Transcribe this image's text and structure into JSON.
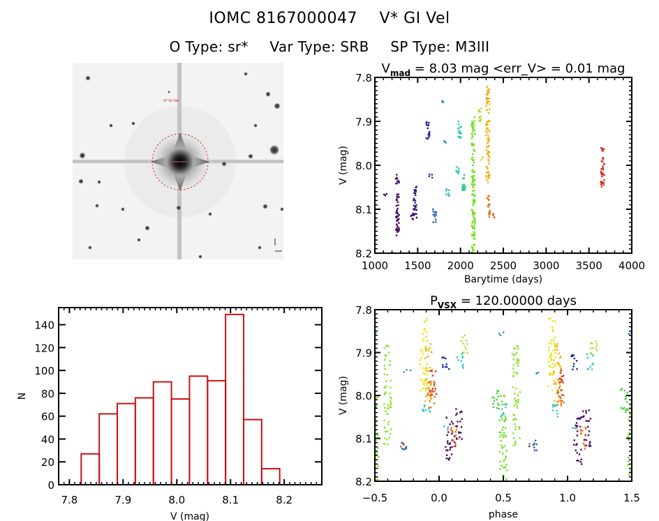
{
  "header": {
    "object_id": "IOMC 8167000047",
    "object_name": "V* GI Vel",
    "o_type": "O Type: sr*",
    "var_type": "Var Type: SRB",
    "sp_type": "SP Type: M3III"
  },
  "image_panel": {
    "description": "Sky cutout centred on target (inverted greyscale) with red dashed aperture circle",
    "aperture_color": "#d01818"
  },
  "chart_data": [
    {
      "id": "light_curve",
      "type": "scatter",
      "title_main": "V",
      "title_sub": "mad",
      "title_rest": " = 8.03 mag <err_V> = 0.01 mag",
      "xlabel": "Barytime (days)",
      "ylabel": "V (mag)",
      "xlim": [
        1000,
        4000
      ],
      "ylim": [
        8.2,
        7.8
      ],
      "y_inverted": true,
      "xticks": [
        1000,
        1500,
        2000,
        2500,
        3000,
        3500,
        4000
      ],
      "yticks": [
        7.8,
        7.9,
        8.0,
        8.1,
        8.2
      ],
      "ytick_labels": [
        "7.8",
        "7.9",
        "8.0",
        "8.1",
        "8.2"
      ],
      "clusters": [
        {
          "x": 1120,
          "ymin": 8.065,
          "ymax": 8.07,
          "color": "#3a0a50"
        },
        {
          "x": 1265,
          "ymin": 8.02,
          "ymax": 8.16,
          "color": "#4b0a62"
        },
        {
          "x": 1430,
          "ymin": 8.11,
          "ymax": 8.13,
          "color": "#4a1070"
        },
        {
          "x": 1470,
          "ymin": 8.04,
          "ymax": 8.12,
          "color": "#3b1a80"
        },
        {
          "x": 1620,
          "ymin": 7.9,
          "ymax": 7.94,
          "color": "#1c2a9a"
        },
        {
          "x": 1650,
          "ymin": 8.02,
          "ymax": 8.03,
          "color": "#2540a8"
        },
        {
          "x": 1700,
          "ymin": 8.1,
          "ymax": 8.13,
          "color": "#2860b0"
        },
        {
          "x": 1790,
          "ymin": 7.85,
          "ymax": 7.86,
          "color": "#2a88c0"
        },
        {
          "x": 1810,
          "ymin": 7.94,
          "ymax": 7.95,
          "color": "#2a9ac8"
        },
        {
          "x": 1850,
          "ymin": 8.05,
          "ymax": 8.07,
          "color": "#30b8d0"
        },
        {
          "x": 1990,
          "ymin": 7.9,
          "ymax": 7.94,
          "color": "#30c8c0"
        },
        {
          "x": 1970,
          "ymin": 8.0,
          "ymax": 8.02,
          "color": "#30c8c0"
        },
        {
          "x": 2040,
          "ymin": 8.02,
          "ymax": 8.06,
          "color": "#2cc890"
        },
        {
          "x": 2150,
          "ymin": 7.89,
          "ymax": 8.2,
          "color": "#70e020"
        },
        {
          "x": 2230,
          "ymin": 7.87,
          "ymax": 7.9,
          "color": "#b0e040"
        },
        {
          "x": 2260,
          "ymin": 7.98,
          "ymax": 7.99,
          "color": "#c8e040"
        },
        {
          "x": 2320,
          "ymin": 7.82,
          "ymax": 8.04,
          "color": "#f0b010"
        },
        {
          "x": 2330,
          "ymin": 8.07,
          "ymax": 8.12,
          "color": "#e07820"
        },
        {
          "x": 2400,
          "ymin": 8.11,
          "ymax": 8.12,
          "color": "#d06020"
        },
        {
          "x": 3660,
          "ymin": 7.96,
          "ymax": 8.05,
          "color": "#d03020"
        }
      ]
    },
    {
      "id": "histogram",
      "type": "bar",
      "xlabel": "V (mag)",
      "ylabel": "N",
      "xlim": [
        7.78,
        8.27
      ],
      "ylim": [
        0,
        155
      ],
      "xticks": [
        7.8,
        7.9,
        8.0,
        8.1,
        8.2
      ],
      "xtick_labels": [
        "7.8",
        "7.9",
        "8.0",
        "8.1",
        "8.2"
      ],
      "yticks": [
        0,
        20,
        40,
        60,
        80,
        100,
        120,
        140
      ],
      "bin_start": 7.822,
      "bin_width": 0.0336,
      "values": [
        27,
        62,
        71,
        76,
        90,
        75,
        95,
        91,
        149,
        57,
        14
      ],
      "bar_color": "#cc1010"
    },
    {
      "id": "phase_curve",
      "type": "scatter",
      "title_main": "P",
      "title_sub": "VSX",
      "title_rest": " = 120.00000 days",
      "xlabel": "phase",
      "ylabel": "V (mag)",
      "xlim": [
        -0.5,
        1.5
      ],
      "ylim": [
        8.2,
        7.8
      ],
      "y_inverted": true,
      "xticks": [
        -0.5,
        0.0,
        0.5,
        1.0,
        1.5
      ],
      "xtick_labels": [
        "−0.5",
        "0.0",
        "0.5",
        "1.0",
        "1.5"
      ],
      "yticks": [
        7.8,
        7.9,
        8.0,
        8.1,
        8.2
      ],
      "ytick_labels": [
        "7.8",
        "7.9",
        "8.0",
        "8.1",
        "8.2"
      ],
      "period_days": 120.0,
      "clusters": [
        {
          "phase": -0.08,
          "ymin": 7.88,
          "ymax": 8.02,
          "color": "#f0b010"
        },
        {
          "phase": -0.05,
          "ymin": 7.94,
          "ymax": 8.0,
          "color": "#d03020"
        },
        {
          "phase": -0.06,
          "ymin": 7.96,
          "ymax": 8.03,
          "color": "#e07820"
        },
        {
          "phase": 0.08,
          "ymin": 8.05,
          "ymax": 8.16,
          "color": "#4b0a62"
        },
        {
          "phase": 0.15,
          "ymin": 8.03,
          "ymax": 8.12,
          "color": "#4b0a62"
        },
        {
          "phase": 0.12,
          "ymin": 8.07,
          "ymax": 8.13,
          "color": "#e07820"
        },
        {
          "phase": 0.05,
          "ymin": 7.9,
          "ymax": 7.94,
          "color": "#1c2a9a"
        },
        {
          "phase": 0.17,
          "ymin": 7.9,
          "ymax": 7.94,
          "color": "#30c8c0"
        },
        {
          "phase": 0.2,
          "ymin": 7.86,
          "ymax": 7.91,
          "color": "#b0e040"
        },
        {
          "phase": 0.05,
          "ymin": 8.07,
          "ymax": 8.08,
          "color": "#30b8d0"
        },
        {
          "phase": 0.44,
          "ymin": 7.98,
          "ymax": 8.04,
          "color": "#40d040"
        },
        {
          "phase": 0.5,
          "ymin": 8.0,
          "ymax": 8.2,
          "color": "#70e020"
        },
        {
          "phase": 0.6,
          "ymin": 7.88,
          "ymax": 8.12,
          "color": "#90e030"
        },
        {
          "phase": 0.48,
          "ymin": 7.85,
          "ymax": 7.86,
          "color": "#2a88c0"
        },
        {
          "phase": 0.5,
          "ymin": 8.02,
          "ymax": 8.05,
          "color": "#30c8c0"
        },
        {
          "phase": 0.72,
          "ymin": 8.11,
          "ymax": 8.12,
          "color": "#d06020"
        },
        {
          "phase": 0.73,
          "ymin": 8.1,
          "ymax": 8.13,
          "color": "#2860b0"
        },
        {
          "phase": 0.75,
          "ymin": 7.94,
          "ymax": 7.95,
          "color": "#2a9ac8"
        },
        {
          "phase": 0.88,
          "ymin": 7.82,
          "ymax": 7.99,
          "color": "#f0e010"
        },
        {
          "phase": 0.9,
          "ymin": 8.02,
          "ymax": 8.06,
          "color": "#30c8c0"
        }
      ]
    }
  ]
}
